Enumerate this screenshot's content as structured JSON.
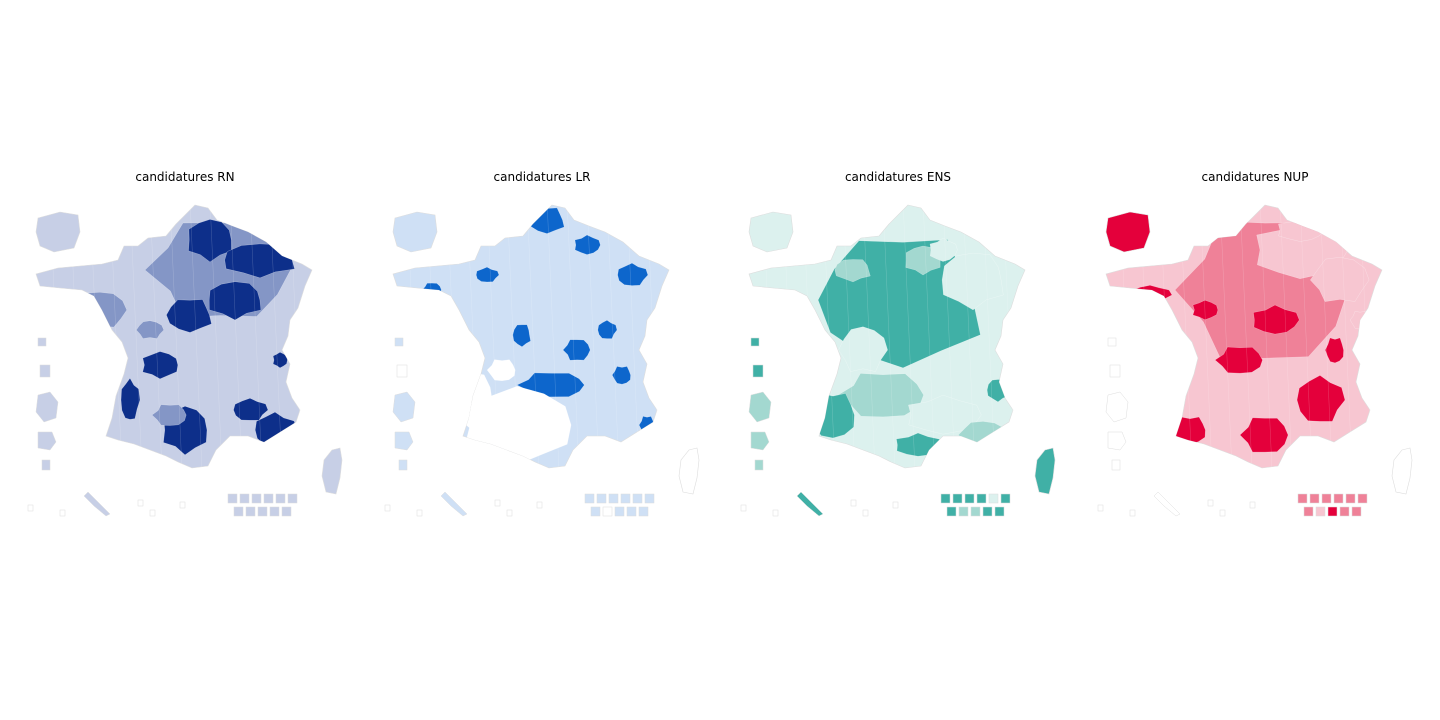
{
  "panels": [
    {
      "title": "candidatures RN",
      "colors": {
        "light": "#c7cfe6",
        "mid": "#8496c6",
        "dark": "#0d2f8a",
        "none": "#ffffff"
      },
      "mainland_pattern": "rn",
      "legend_row1": [
        "light",
        "light",
        "light",
        "light",
        "light",
        "light"
      ],
      "legend_row2": [
        "light",
        "light",
        "light",
        "light",
        "light"
      ],
      "corsica": "light",
      "guadeloupe": "light",
      "martinique": "light",
      "guyane": "light",
      "reunion": "light"
    },
    {
      "title": "candidatures LR",
      "colors": {
        "light": "#cfe0f5",
        "mid": "#5a93dd",
        "dark": "#0d66cc",
        "none": "#ffffff"
      },
      "mainland_pattern": "lr",
      "legend_row1": [
        "light",
        "light",
        "light",
        "light",
        "light",
        "light"
      ],
      "legend_row2": [
        "light",
        "none",
        "light",
        "light",
        "light"
      ],
      "corsica": "none",
      "guadeloupe": "light",
      "martinique": "none",
      "guyane": "light",
      "reunion": "light"
    },
    {
      "title": "candidatures ENS",
      "colors": {
        "light": "#dcf1ee",
        "mid": "#a3d8d0",
        "dark": "#40b0a6",
        "none": "#ffffff"
      },
      "mainland_pattern": "ens",
      "legend_row1": [
        "dark",
        "dark",
        "dark",
        "dark",
        "light",
        "dark"
      ],
      "legend_row2": [
        "dark",
        "mid",
        "mid",
        "dark",
        "dark"
      ],
      "corsica": "dark",
      "guadeloupe": "dark",
      "martinique": "dark",
      "guyane": "mid",
      "reunion": "mid"
    },
    {
      "title": "candidatures NUP",
      "colors": {
        "light": "#f7c6d1",
        "mid": "#ef8198",
        "dark": "#e4003b",
        "none": "#ffffff"
      },
      "mainland_pattern": "nup",
      "legend_row1": [
        "mid",
        "mid",
        "mid",
        "mid",
        "mid",
        "mid"
      ],
      "legend_row2": [
        "mid",
        "light",
        "dark",
        "mid",
        "mid"
      ],
      "corsica": "none",
      "guadeloupe": "none",
      "martinique": "none",
      "guyane": "none",
      "reunion": "none"
    }
  ]
}
